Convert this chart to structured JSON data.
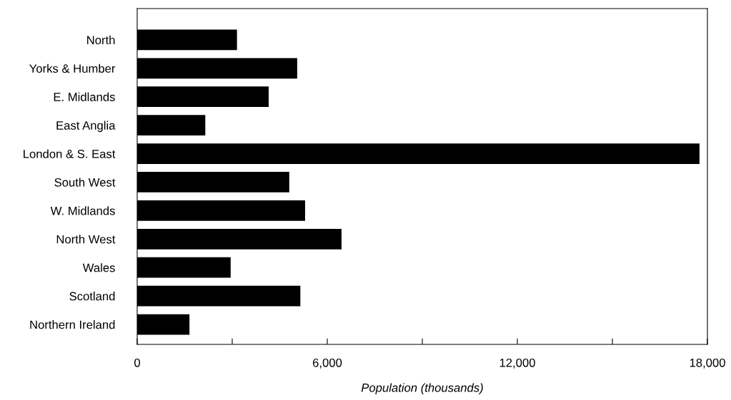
{
  "chart_data": {
    "type": "bar",
    "orientation": "horizontal",
    "xlabel": "Population (thousands)",
    "categories": [
      "North",
      "Yorks & Humber",
      "E. Midlands",
      "East Anglia",
      "London & S. East",
      "South West",
      "W. Midlands",
      "North West",
      "Wales",
      "Scotland",
      "Northern Ireland"
    ],
    "values": [
      3150,
      5050,
      4150,
      2150,
      17750,
      4800,
      5300,
      6450,
      2950,
      5150,
      1650
    ],
    "color": "#000000",
    "xlim": [
      0,
      18000
    ],
    "xticks": [
      0,
      {
        "value": 3000,
        "label": null
      },
      {
        "value": 6000,
        "label": "6,000"
      },
      {
        "value": 9000,
        "label": null
      },
      {
        "value": 12000,
        "label": "12,000"
      },
      {
        "value": 15000,
        "label": null
      },
      {
        "value": 18000,
        "label": "18,000"
      }
    ],
    "grid": false
  }
}
